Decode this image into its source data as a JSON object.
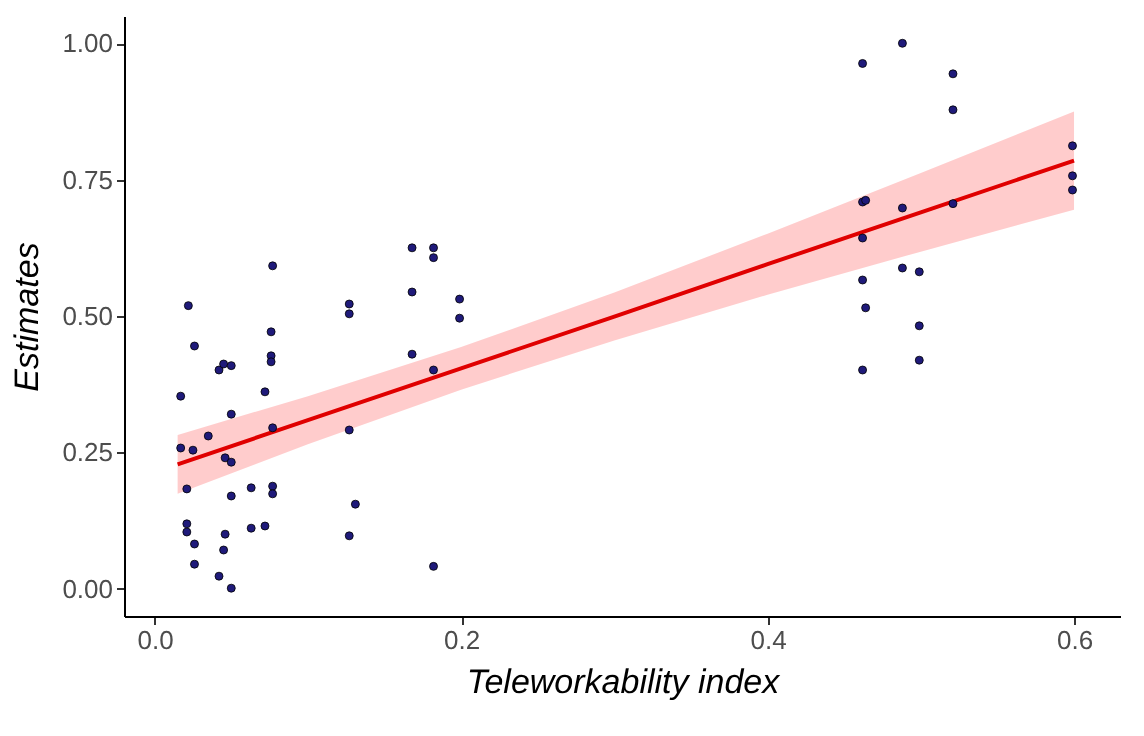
{
  "chart_data": {
    "type": "scatter",
    "xlabel": "Teleworkability index",
    "ylabel": "Estimates",
    "xlim": [
      -0.02,
      0.63
    ],
    "ylim": [
      -0.05,
      1.05
    ],
    "xticks": [
      {
        "value": 0,
        "label": "0.0"
      },
      {
        "value": 0.2,
        "label": "0.2"
      },
      {
        "value": 0.4,
        "label": "0.4"
      },
      {
        "value": 0.6,
        "label": "0.6"
      }
    ],
    "yticks": [
      {
        "value": 0,
        "label": "0.00"
      },
      {
        "value": 0.25,
        "label": "0.25"
      },
      {
        "value": 0.5,
        "label": "0.50"
      },
      {
        "value": 0.75,
        "label": "0.75"
      },
      {
        "value": 1,
        "label": "1.00"
      }
    ],
    "marker": "circle",
    "series": [
      {
        "color": "#1f1a7a",
        "x": [
          0.168,
          0.182,
          0.182,
          0.077,
          0.022,
          0.168,
          0.127,
          0.127,
          0.199,
          0.199,
          0.076,
          0.026,
          0.076,
          0.076,
          0.042,
          0.045,
          0.05,
          0.168,
          0.182,
          0.017,
          0.072,
          0.05,
          0.077,
          0.035,
          0.127,
          0.017,
          0.025,
          0.046,
          0.05,
          0.021,
          0.05,
          0.063,
          0.077,
          0.077,
          0.131,
          0.021,
          0.021,
          0.046,
          0.063,
          0.072,
          0.127,
          0.026,
          0.045,
          0.026,
          0.182,
          0.042,
          0.05,
          0.488,
          0.462,
          0.521,
          0.521,
          0.599,
          0.599,
          0.599,
          0.462,
          0.464,
          0.488,
          0.521,
          0.462,
          0.462,
          0.488,
          0.499,
          0.464,
          0.499,
          0.499,
          0.462
        ],
        "values": [
          0.625,
          0.625,
          0.607,
          0.592,
          0.519,
          0.544,
          0.522,
          0.504,
          0.531,
          0.496,
          0.471,
          0.445,
          0.427,
          0.416,
          0.401,
          0.412,
          0.409,
          0.43,
          0.401,
          0.353,
          0.361,
          0.32,
          0.295,
          0.28,
          0.291,
          0.258,
          0.254,
          0.24,
          0.232,
          0.183,
          0.17,
          0.185,
          0.188,
          0.174,
          0.155,
          0.119,
          0.104,
          0.1,
          0.111,
          0.115,
          0.097,
          0.082,
          0.071,
          0.045,
          0.041,
          0.023,
          0.001,
          1.0,
          0.963,
          0.944,
          0.878,
          0.812,
          0.757,
          0.731,
          0.709,
          0.712,
          0.698,
          0.706,
          0.643,
          0.566,
          0.588,
          0.581,
          0.515,
          0.482,
          0.419,
          0.401
        ]
      },
      {
        "type": "line",
        "marker": "none",
        "color": "#e00000",
        "x": [
          0.015,
          0.1,
          0.2,
          0.3,
          0.4,
          0.5,
          0.6
        ],
        "values": [
          0.228,
          0.309,
          0.404,
          0.499,
          0.595,
          0.69,
          0.785
        ],
        "lower": [
          0.174,
          0.265,
          0.365,
          0.455,
          0.539,
          0.618,
          0.695
        ],
        "upper": [
          0.282,
          0.353,
          0.443,
          0.543,
          0.651,
          0.762,
          0.875
        ]
      }
    ]
  }
}
